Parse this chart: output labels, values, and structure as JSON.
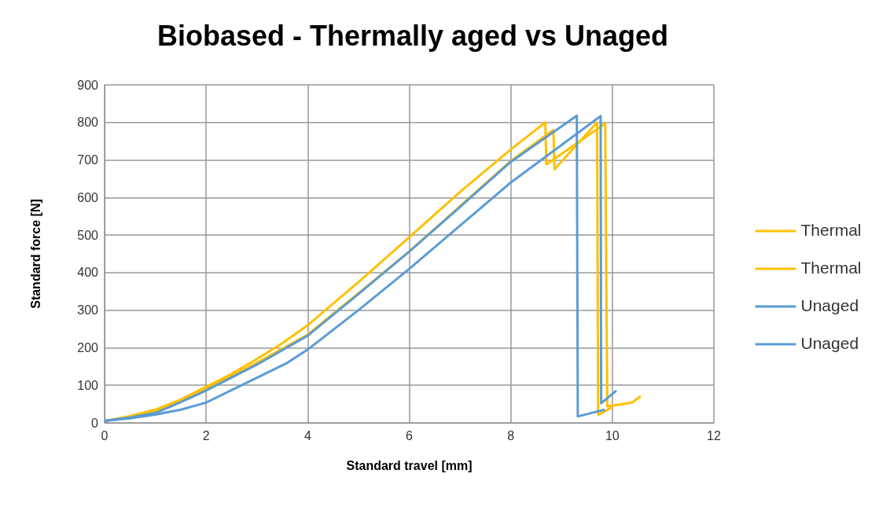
{
  "chart_data": {
    "type": "line",
    "title": "Biobased - Thermally aged vs Unaged",
    "xlabel": "Standard travel [mm]",
    "ylabel": "Standard force [N]",
    "xlim": [
      0,
      12
    ],
    "xticks": [
      0,
      2,
      4,
      6,
      8,
      10,
      12
    ],
    "ylim": [
      0,
      900
    ],
    "yticks": [
      0,
      100,
      200,
      300,
      400,
      500,
      600,
      700,
      800,
      900
    ],
    "grid": true,
    "legend": "right",
    "marker": "none",
    "line_style": "solid",
    "series": [
      {
        "name": "Thermal",
        "color": "#ffc000",
        "x": [
          0,
          0.5,
          1,
          1.5,
          2,
          2.5,
          3,
          3.5,
          4,
          5,
          6,
          7,
          8,
          8.68,
          8.7,
          9.86,
          9.9,
          10.3,
          10.4,
          10.56
        ],
        "values": [
          5,
          18,
          35,
          62,
          96,
          130,
          170,
          212,
          260,
          375,
          494,
          615,
          728,
          800,
          688,
          797,
          44,
          52,
          55,
          71
        ]
      },
      {
        "name": "Thermal",
        "color": "#ffc000",
        "x": [
          0,
          0.5,
          1,
          1.5,
          2,
          3,
          4,
          5,
          6,
          7,
          8,
          8.84,
          8.86,
          9.7,
          9.72,
          10
        ],
        "values": [
          5,
          15,
          30,
          58,
          90,
          160,
          235,
          345,
          456,
          577,
          697,
          780,
          675,
          800,
          21,
          42
        ]
      },
      {
        "name": "Unaged",
        "color": "#5b9bd5",
        "x": [
          0,
          0.5,
          1,
          1.5,
          2,
          3,
          4,
          5,
          6,
          7,
          8,
          9.3,
          9.32,
          9.7,
          9.85
        ],
        "values": [
          5,
          14,
          26,
          55,
          86,
          155,
          232,
          343,
          456,
          575,
          695,
          818,
          17,
          30,
          35
        ]
      },
      {
        "name": "Unaged",
        "color": "#5b9bd5",
        "x": [
          0,
          0.5,
          1,
          1.5,
          2,
          3,
          3.6,
          4,
          5,
          6,
          7,
          8,
          9.77,
          9.78,
          10.08
        ],
        "values": [
          5,
          12,
          22,
          35,
          54,
          120,
          160,
          195,
          300,
          410,
          525,
          640,
          817,
          52,
          86
        ]
      }
    ]
  }
}
